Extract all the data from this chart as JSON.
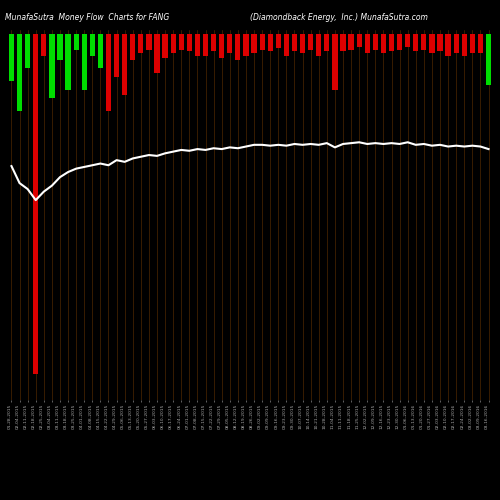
{
  "title_left": "MunafaSutra  Money Flow  Charts for FANG",
  "title_right": "(Diamondback Energy,  Inc.) MunafaSutra.com",
  "bg_color": "#000000",
  "bar_color_pos": "#00dd00",
  "bar_color_neg": "#dd0000",
  "line_color": "#ffffff",
  "grid_color": "#8B4500",
  "tick_label_color": "#aaaaaa",
  "categories": [
    "01-28-2015",
    "02-04-2015",
    "02-11-2015",
    "02-18-2015",
    "02-25-2015",
    "03-04-2015",
    "03-11-2015",
    "03-18-2015",
    "03-25-2015",
    "04-01-2015",
    "04-08-2015",
    "04-15-2015",
    "04-22-2015",
    "04-29-2015",
    "05-06-2015",
    "05-13-2015",
    "05-20-2015",
    "05-27-2015",
    "06-03-2015",
    "06-10-2015",
    "06-17-2015",
    "06-24-2015",
    "07-01-2015",
    "07-08-2015",
    "07-15-2015",
    "07-22-2015",
    "07-29-2015",
    "08-05-2015",
    "08-12-2015",
    "08-19-2015",
    "08-26-2015",
    "09-02-2015",
    "09-09-2015",
    "09-16-2015",
    "09-23-2015",
    "09-30-2015",
    "10-07-2015",
    "10-14-2015",
    "10-21-2015",
    "10-28-2015",
    "11-04-2015",
    "11-11-2015",
    "11-18-2015",
    "11-25-2015",
    "12-02-2015",
    "12-09-2015",
    "12-16-2015",
    "12-23-2015",
    "12-30-2015",
    "01-06-2016",
    "01-13-2016",
    "01-20-2016",
    "01-27-2016",
    "02-03-2016",
    "02-10-2016",
    "02-17-2016",
    "02-24-2016",
    "03-02-2016",
    "03-09-2016",
    "03-16-2016"
  ],
  "bar_heights": [
    55,
    90,
    40,
    400,
    25,
    75,
    30,
    65,
    18,
    65,
    25,
    40,
    90,
    50,
    72,
    30,
    22,
    18,
    45,
    28,
    22,
    18,
    20,
    25,
    25,
    20,
    28,
    22,
    30,
    25,
    22,
    18,
    20,
    16,
    25,
    20,
    22,
    18,
    25,
    20,
    65,
    20,
    18,
    15,
    22,
    18,
    22,
    20,
    18,
    15,
    20,
    18,
    22,
    20,
    25,
    22,
    25,
    22,
    22,
    60
  ],
  "bar_colors": [
    "g",
    "g",
    "g",
    "r",
    "r",
    "g",
    "g",
    "g",
    "g",
    "g",
    "g",
    "g",
    "r",
    "r",
    "r",
    "r",
    "r",
    "r",
    "r",
    "r",
    "r",
    "r",
    "r",
    "r",
    "r",
    "r",
    "r",
    "r",
    "r",
    "r",
    "r",
    "r",
    "r",
    "r",
    "r",
    "r",
    "r",
    "r",
    "r",
    "r",
    "r",
    "r",
    "r",
    "r",
    "r",
    "r",
    "r",
    "r",
    "r",
    "r",
    "r",
    "r",
    "r",
    "r",
    "r",
    "r",
    "r",
    "r",
    "r",
    "g"
  ],
  "line_values": [
    155,
    175,
    182,
    195,
    185,
    178,
    168,
    162,
    158,
    156,
    154,
    152,
    154,
    148,
    150,
    146,
    144,
    142,
    143,
    140,
    138,
    136,
    137,
    135,
    136,
    134,
    135,
    133,
    134,
    132,
    130,
    130,
    131,
    130,
    131,
    129,
    130,
    129,
    130,
    128,
    133,
    129,
    128,
    127,
    129,
    128,
    129,
    128,
    129,
    127,
    130,
    129,
    131,
    130,
    132,
    131,
    132,
    131,
    132,
    135
  ]
}
